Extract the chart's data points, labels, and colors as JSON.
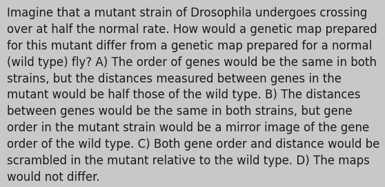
{
  "background_color": "#c8c8c8",
  "text_color": "#1a1a1a",
  "text": "Imagine that a mutant strain of Drosophila undergoes crossing\nover at half the normal rate. How would a genetic map prepared\nfor this mutant differ from a genetic map prepared for a normal\n(wild type) fly? A) The order of genes would be the same in both\nstrains, but the distances measured between genes in the\nmutant would be half those of the wild type. B) The distances\nbetween genes would be the same in both strains, but gene\norder in the mutant strain would be a mirror image of the gene\norder of the wild type. C) Both gene order and distance would be\nscrambled in the mutant relative to the wild type. D) The maps\nwould not differ.",
  "font_size": 12.0,
  "font_family": "DejaVu Sans",
  "figsize": [
    5.58,
    2.72
  ],
  "dpi": 100
}
